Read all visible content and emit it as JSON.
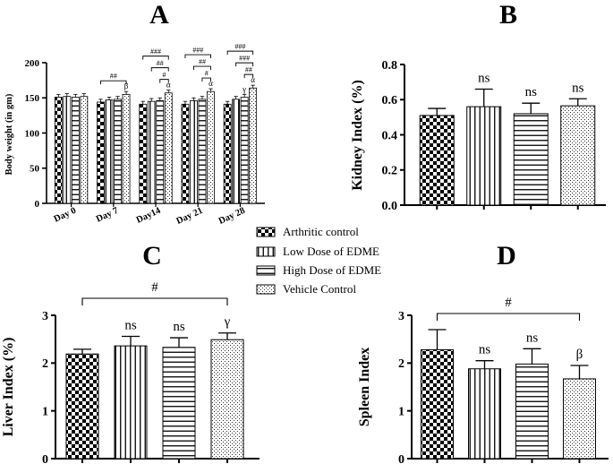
{
  "chart_data": [
    {
      "panel": "A",
      "type": "bar",
      "title": "",
      "ylabel": "Body weight (in gm)",
      "xlabel": "",
      "ylim": [
        0,
        200
      ],
      "yticks": [
        "0",
        "50",
        "100",
        "150",
        "200"
      ],
      "categories": [
        "Day 0",
        "Day 7",
        "Day14",
        "Day 21",
        "Day 28"
      ],
      "series": [
        {
          "name": "Arthritic control",
          "values": [
            151,
            144,
            141,
            141,
            141
          ],
          "errors": [
            4,
            4,
            4,
            4,
            4
          ]
        },
        {
          "name": "Low Dose of EDME",
          "values": [
            152,
            147,
            145,
            146,
            148
          ],
          "errors": [
            4,
            4,
            4,
            4,
            4
          ]
        },
        {
          "name": "High Dose of EDME",
          "values": [
            151,
            148,
            146,
            148,
            151
          ],
          "errors": [
            4,
            4,
            4,
            4,
            4
          ]
        },
        {
          "name": "Vehicle Control",
          "values": [
            152,
            155,
            157,
            159,
            164
          ],
          "errors": [
            4,
            4,
            4,
            4,
            4
          ]
        }
      ],
      "annotations": [
        {
          "category": 1,
          "series": 3,
          "label": "β"
        },
        {
          "category": 2,
          "series": 3,
          "label": "α"
        },
        {
          "category": 3,
          "series": 3,
          "label": "α"
        },
        {
          "category": 4,
          "series": 2,
          "label": "γ"
        },
        {
          "category": 4,
          "series": 3,
          "label": "α"
        }
      ],
      "brackets": [
        {
          "category": 1,
          "from": 0,
          "to": 3,
          "level": 0,
          "label": "##"
        },
        {
          "category": 2,
          "from": 2,
          "to": 3,
          "level": 0,
          "label": "#"
        },
        {
          "category": 2,
          "from": 1,
          "to": 3,
          "level": 1,
          "label": "##"
        },
        {
          "category": 2,
          "from": 0,
          "to": 3,
          "level": 2,
          "label": "###"
        },
        {
          "category": 3,
          "from": 2,
          "to": 3,
          "level": 0,
          "label": "#"
        },
        {
          "category": 3,
          "from": 1,
          "to": 3,
          "level": 1,
          "label": "##"
        },
        {
          "category": 3,
          "from": 0,
          "to": 3,
          "level": 2,
          "label": "###"
        },
        {
          "category": 4,
          "from": 2,
          "to": 3,
          "level": 0,
          "label": "##"
        },
        {
          "category": 4,
          "from": 1,
          "to": 3,
          "level": 1,
          "label": "###"
        },
        {
          "category": 4,
          "from": 0,
          "to": 3,
          "level": 2,
          "label": "###"
        }
      ]
    },
    {
      "panel": "B",
      "type": "bar",
      "ylabel": "Kidney Index (%)",
      "ylim": [
        0,
        0.8
      ],
      "yticks": [
        "0.0",
        "0.2",
        "0.4",
        "0.6",
        "0.8"
      ],
      "categories": [
        "Arthritic control",
        "Low Dose of EDME",
        "High Dose of EDME",
        "Vehicle Control"
      ],
      "values": [
        0.51,
        0.56,
        0.52,
        0.565
      ],
      "errors": [
        0.04,
        0.1,
        0.06,
        0.04
      ],
      "labels": [
        "",
        "ns",
        "ns",
        "ns"
      ]
    },
    {
      "panel": "C",
      "type": "bar",
      "ylabel": "Liver Index (%)",
      "ylim": [
        0,
        3
      ],
      "yticks": [
        "0",
        "1",
        "2",
        "3"
      ],
      "categories": [
        "Arthritic control",
        "Low Dose of EDME",
        "High Dose of EDME",
        "Vehicle Control"
      ],
      "values": [
        2.19,
        2.36,
        2.33,
        2.49
      ],
      "errors": [
        0.1,
        0.2,
        0.2,
        0.14
      ],
      "labels": [
        "",
        "ns",
        "ns",
        "γ"
      ],
      "bracket_label": "#"
    },
    {
      "panel": "D",
      "type": "bar",
      "ylabel": "Spleen Index",
      "ylim": [
        0,
        3
      ],
      "yticks": [
        "0",
        "1",
        "2",
        "3"
      ],
      "categories": [
        "Arthritic control",
        "Low Dose of EDME",
        "High Dose of EDME",
        "Vehicle Control"
      ],
      "values": [
        2.28,
        1.88,
        1.98,
        1.67
      ],
      "errors": [
        0.42,
        0.17,
        0.32,
        0.28
      ],
      "labels": [
        "",
        "ns",
        "ns",
        "β"
      ],
      "bracket_label": "#"
    }
  ],
  "legend": {
    "placement": "center",
    "items": [
      "Arthritic control",
      "Low Dose of EDME",
      "High Dose of EDME",
      "Vehicle Control"
    ]
  },
  "colors": {
    "ink": "#000000",
    "bar_fill": "#ffffff"
  },
  "patterns": [
    "checker-pattern",
    "vertical-lines-pattern",
    "horizontal-lines-pattern",
    "dots-pattern"
  ]
}
